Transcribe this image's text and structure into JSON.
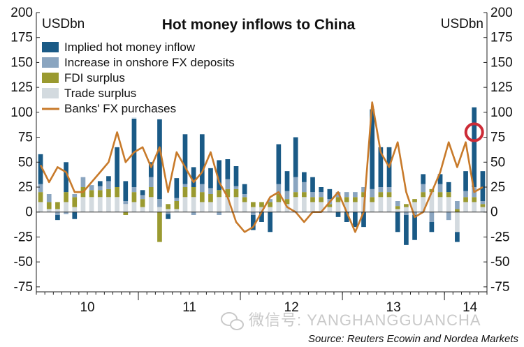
{
  "chart_data": {
    "type": "bar",
    "title": "Hot money inflows to China",
    "y_unit_left": "USDbn",
    "y_unit_right": "USDbn",
    "ylim": [
      -80,
      200
    ],
    "yticks": [
      200,
      175,
      150,
      125,
      100,
      75,
      50,
      25,
      0,
      -25,
      -50,
      -75
    ],
    "xticks": [
      {
        "label": "10",
        "month_index": 6
      },
      {
        "label": "11",
        "month_index": 18
      },
      {
        "label": "12",
        "month_index": 30
      },
      {
        "label": "13",
        "month_index": 42
      },
      {
        "label": "14",
        "month_index": 51
      }
    ],
    "months": 53,
    "colors": {
      "implied": "#1a5a86",
      "deposits": "#8aa5c0",
      "fdi": "#9a9a30",
      "trade": "#d3dadf",
      "banks": "#c87a2a",
      "highlight": "#cc2b36"
    },
    "legend": [
      {
        "key": "implied",
        "label": "Implied hot money inflow",
        "kind": "box"
      },
      {
        "key": "deposits",
        "label": "Increase in onshore FX deposits",
        "kind": "box"
      },
      {
        "key": "fdi",
        "label": "FDI surplus",
        "kind": "box"
      },
      {
        "key": "trade",
        "label": "Trade surplus",
        "kind": "box"
      },
      {
        "key": "banks",
        "label": "Banks' FX purchases",
        "kind": "line"
      }
    ],
    "series": [
      {
        "name": "Implied hot money inflow",
        "values": [
          30,
          0,
          -5,
          30,
          -7,
          0,
          0,
          5,
          5,
          40,
          20,
          70,
          5,
          15,
          80,
          -5,
          20,
          50,
          20,
          50,
          20,
          30,
          20,
          20,
          10,
          -15,
          -10,
          -20,
          40,
          20,
          40,
          10,
          15,
          5,
          10,
          -5,
          -10,
          -15,
          -15,
          80,
          40,
          40,
          -20,
          -30,
          -25,
          10,
          -10,
          10,
          10,
          -10,
          20,
          80,
          30
        ]
      },
      {
        "name": "Increase in onshore FX deposits",
        "values": [
          8,
          8,
          -3,
          -2,
          3,
          10,
          5,
          4,
          8,
          0,
          3,
          5,
          4,
          10,
          8,
          -2,
          3,
          3,
          -3,
          8,
          6,
          -3,
          10,
          3,
          3,
          -3,
          0,
          3,
          10,
          8,
          15,
          10,
          5,
          5,
          5,
          5,
          5,
          5,
          5,
          8,
          5,
          5,
          5,
          -3,
          -3,
          8,
          -10,
          8,
          -8,
          8,
          6,
          10,
          3
        ]
      },
      {
        "name": "FDI surplus",
        "values": [
          10,
          7,
          7,
          10,
          10,
          10,
          7,
          7,
          8,
          10,
          -3,
          10,
          8,
          10,
          -30,
          5,
          8,
          10,
          10,
          10,
          8,
          7,
          8,
          8,
          5,
          5,
          5,
          5,
          8,
          5,
          5,
          5,
          5,
          5,
          3,
          5,
          5,
          5,
          5,
          5,
          5,
          5,
          3,
          3,
          3,
          5,
          3,
          5,
          5,
          3,
          5,
          5,
          3
        ]
      },
      {
        "name": "Trade surplus",
        "values": [
          10,
          3,
          3,
          10,
          5,
          15,
          15,
          15,
          15,
          15,
          8,
          10,
          5,
          15,
          5,
          3,
          3,
          15,
          15,
          10,
          10,
          15,
          15,
          15,
          10,
          5,
          5,
          5,
          10,
          8,
          15,
          15,
          10,
          10,
          5,
          10,
          10,
          10,
          15,
          10,
          15,
          15,
          3,
          5,
          10,
          15,
          20,
          15,
          15,
          -20,
          10,
          10,
          5
        ]
      },
      {
        "name": "Banks' FX purchases",
        "values": [
          47,
          30,
          45,
          40,
          20,
          20,
          30,
          40,
          50,
          80,
          50,
          60,
          65,
          45,
          65,
          20,
          60,
          45,
          30,
          40,
          60,
          30,
          15,
          -10,
          -20,
          -15,
          0,
          15,
          20,
          5,
          0,
          -10,
          0,
          0,
          10,
          20,
          0,
          -20,
          0,
          110,
          60,
          45,
          70,
          20,
          -5,
          0,
          20,
          40,
          70,
          45,
          70,
          20,
          25
        ]
      }
    ],
    "annotation": {
      "type": "circle",
      "target": "latest Implied hot money inflow bar"
    }
  },
  "source_text": "Source: Reuters Ecowin and Nordea Markets",
  "watermark_text": "微信号: YANGHANGGUANCHA"
}
